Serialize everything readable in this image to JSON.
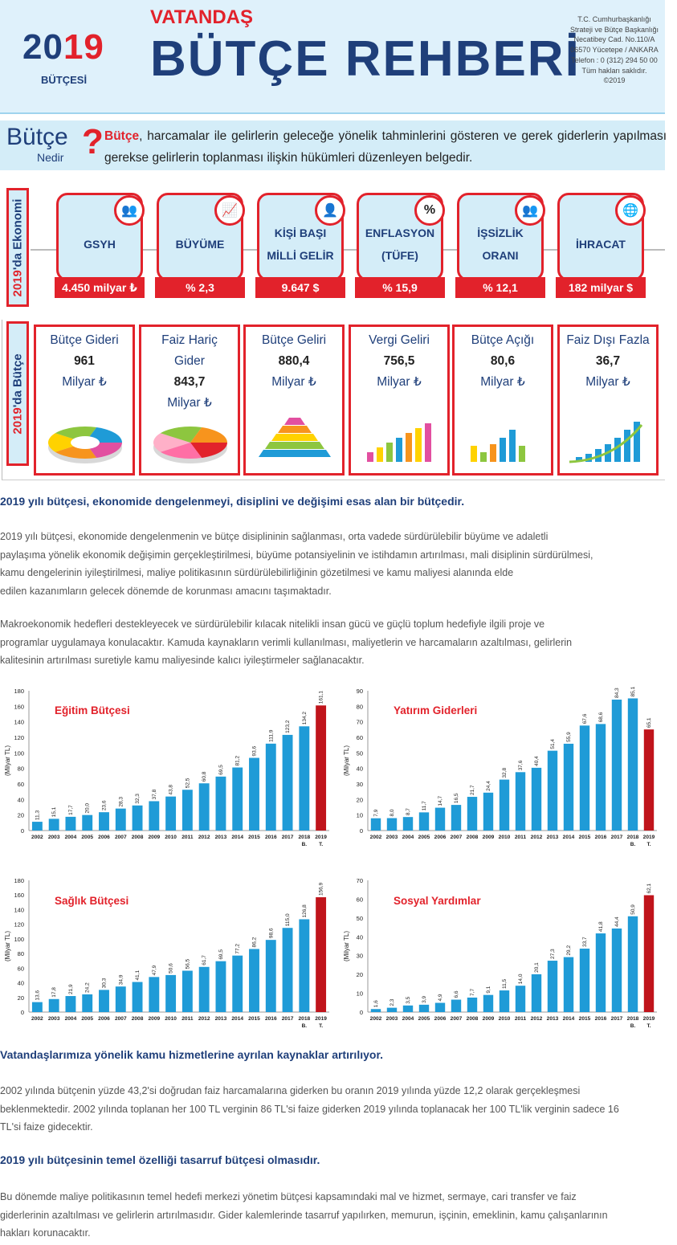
{
  "header": {
    "year_prefix": "20",
    "year_suffix": "19",
    "year_sub": "BÜTÇESİ",
    "small_title": "VATANDAŞ",
    "big_title": "BÜTÇE REHBERİ",
    "address": [
      "T.C. Cumhurbaşkanlığı",
      "Strateji ve Bütçe Başkanlığı",
      "Necatibey Cad. No.110/A",
      "06570 Yücetepe / ANKARA",
      "Telefon : 0 (312) 294 50 00",
      "Tüm hakları saklıdır.",
      "©2019"
    ]
  },
  "nedir": {
    "word": "Bütçe",
    "sub": "Nedir",
    "qmark": "?",
    "term": "Bütçe",
    "definition": ", harcamalar ile gelirlerin geleceğe yönelik tahminlerini gösteren ve gerek giderlerin yapılması gerekse gelirlerin toplanması ilişkin hükümleri düzenleyen belgedir."
  },
  "economy": {
    "label_year": "2019",
    "label_rest": "'da Ekonomi",
    "items": [
      {
        "label": "GSYH",
        "value": "4.450 milyar ₺",
        "icon": "people-icon",
        "glyph": "👥"
      },
      {
        "label": "BÜYÜME",
        "value": "% 2,3",
        "icon": "growth-chart-icon",
        "glyph": "📈"
      },
      {
        "label": "KİŞİ BAŞI MİLLİ GELİR",
        "value": "9.647 $",
        "icon": "person-icon",
        "glyph": "👤"
      },
      {
        "label": "ENFLASYON (TÜFE)",
        "value": "% 15,9",
        "icon": "percent-icon",
        "glyph": "%"
      },
      {
        "label": "İŞSİZLİK ORANI",
        "value": "% 12,1",
        "icon": "meeting-icon",
        "glyph": "👥"
      },
      {
        "label": "İHRACAT",
        "value": "182 milyar $",
        "icon": "globe-icon",
        "glyph": "🌐"
      }
    ]
  },
  "budget": {
    "label_year": "2019",
    "label_rest": "'da Bütçe",
    "items": [
      {
        "l1": "Bütçe Gideri",
        "v": "961",
        "u": "Milyar ₺",
        "img": "donut-chart-icon"
      },
      {
        "l1": "Faiz Hariç",
        "l2": "Gider",
        "v": "843,7",
        "u": "Milyar ₺",
        "img": "pie-chart-icon"
      },
      {
        "l1": "Bütçe Geliri",
        "v": "880,4",
        "u": "Milyar ₺",
        "img": "pyramid-icon"
      },
      {
        "l1": "Vergi Geliri",
        "v": "756,5",
        "u": "Milyar ₺",
        "img": "bar-chart-icon"
      },
      {
        "l1": "Bütçe Açığı",
        "v": "80,6",
        "u": "Milyar ₺",
        "img": "column-chart-icon"
      },
      {
        "l1": "Faiz Dışı Fazla",
        "v": "36,7",
        "u": "Milyar ₺",
        "img": "growth-arrow-icon"
      }
    ]
  },
  "sections": {
    "h1": "2019 yılı bütçesi, ekonomide dengelenmeyi, disiplini ve değişimi esas alan bir bütçedir.",
    "p1": [
      "2019 yılı bütçesi, ekonomide dengelenmenin ve bütçe disiplininin sağlanması, orta vadede sürdürülebilir büyüme ve adaletli",
      "paylaşıma yönelik ekonomik değişimin gerçekleştirilmesi, büyüme potansiyelinin ve istihdamın artırılması, mali disiplinin sürdürülmesi,",
      "kamu dengelerinin iyileştirilmesi, maliye politikasının sürdürülebilirliğinin gözetilmesi ve kamu maliyesi alanında elde",
      "edilen kazanımların gelecek dönemde de korunması amacını taşımaktadır."
    ],
    "p2": [
      "Makroekonomik hedefleri destekleyecek ve sürdürülebilir kılacak nitelikli insan gücü ve güçlü toplum hedefiyle ilgili proje ve",
      "programlar uygulamaya konulacaktır. Kamuda kaynakların verimli kullanılması, maliyetlerin ve harcamaların azaltılması, gelirlerin",
      "kalitesinin artırılması suretiyle kamu maliyesinde kalıcı iyileştirmeler sağlanacaktır."
    ],
    "h2": "Vatandaşlarımıza yönelik kamu hizmetlerine ayrılan kaynaklar artırılıyor.",
    "p3": [
      "2002 yılında bütçenin yüzde 43,2'si doğrudan faiz harcamalarına giderken bu oranın 2019 yılında yüzde 12,2 olarak gerçekleşmesi",
      "beklenmektedir. 2002 yılında toplanan her 100 TL verginin 86 TL'si faize giderken 2019 yılında toplanacak her 100 TL'lik verginin sadece 16",
      "TL'si faize gidecektir."
    ],
    "h3": "2019 yılı bütçesinin temel özelliği tasarruf bütçesi olmasıdır.",
    "p4": [
      "Bu dönemde maliye politikasının temel hedefi merkezi yönetim bütçesi kapsamındaki mal ve hizmet, sermaye, cari transfer ve faiz",
      "giderlerinin azaltılması ve gelirlerin artırılmasıdır. Gider kalemlerinde tasarruf yapılırken, memurun, işçinin, emeklinin, kamu çalışanlarının",
      "hakları korunacaktır."
    ]
  },
  "colors": {
    "blue": "#1f9bd7",
    "red": "#c0141b",
    "navy": "#1f3f7a",
    "accent": "#e2222b"
  },
  "chart_data": [
    {
      "type": "bar",
      "title": "Eğitim Bütçesi",
      "ylabel": "(Milyar TL)",
      "ylim": [
        0,
        180
      ],
      "yticks": [
        0,
        20,
        40,
        60,
        80,
        100,
        120,
        140,
        160,
        180
      ],
      "categories": [
        "2002",
        "2003",
        "2004",
        "2005",
        "2006",
        "2007",
        "2008",
        "2009",
        "2010",
        "2011",
        "2012",
        "2013",
        "2014",
        "2015",
        "2016",
        "2017",
        "2018",
        "2019"
      ],
      "sublabels": {
        "2018": "B.",
        "2019": "T."
      },
      "values": [
        11.3,
        15.1,
        17.7,
        20.0,
        23.6,
        28.3,
        32.3,
        37.8,
        43.8,
        52.5,
        60.8,
        69.5,
        81.2,
        93.6,
        111.9,
        123.2,
        134.2,
        161.1
      ],
      "labels": [
        "11,3",
        "15,1",
        "17,7",
        "20,0",
        "23,6",
        "28,3",
        "32,3",
        "37,8",
        "43,8",
        "52,5",
        "60,8",
        "69,5",
        "81,2",
        "93,6",
        "111,9",
        "123,2",
        "134,2",
        "161,1"
      ]
    },
    {
      "type": "bar",
      "title": "Yatırım Giderleri",
      "ylabel": "(Milyar TL)",
      "ylim": [
        0,
        90
      ],
      "yticks": [
        0,
        10,
        20,
        30,
        40,
        50,
        60,
        70,
        80,
        90
      ],
      "categories": [
        "2002",
        "2003",
        "2004",
        "2005",
        "2006",
        "2007",
        "2008",
        "2009",
        "2010",
        "2011",
        "2012",
        "2013",
        "2014",
        "2015",
        "2016",
        "2017",
        "2018",
        "2019"
      ],
      "sublabels": {
        "2018": "B.",
        "2019": "T."
      },
      "values": [
        7.9,
        8.0,
        8.7,
        11.7,
        14.7,
        16.5,
        21.7,
        24.4,
        32.8,
        37.6,
        40.4,
        51.4,
        55.9,
        67.6,
        68.6,
        84.3,
        85.1,
        65.1
      ],
      "labels": [
        "7,9",
        "8,0",
        "8,7",
        "11,7",
        "14,7",
        "16,5",
        "21,7",
        "24,4",
        "32,8",
        "37,6",
        "40,4",
        "51,4",
        "55,9",
        "67,6",
        "68,6",
        "84,3",
        "85,1",
        "65,1"
      ]
    },
    {
      "type": "bar",
      "title": "Sağlık Bütçesi",
      "ylabel": "(Milyar TL)",
      "ylim": [
        0,
        180
      ],
      "yticks": [
        0,
        20,
        40,
        60,
        80,
        100,
        120,
        140,
        160,
        180
      ],
      "categories": [
        "2002",
        "2003",
        "2004",
        "2005",
        "2006",
        "2007",
        "2008",
        "2009",
        "2010",
        "2011",
        "2012",
        "2013",
        "2014",
        "2015",
        "2016",
        "2017",
        "2018",
        "2019"
      ],
      "sublabels": {
        "2018": "B.",
        "2019": "T."
      },
      "values": [
        13.6,
        17.8,
        21.9,
        24.2,
        30.3,
        34.9,
        41.1,
        47.9,
        50.6,
        56.5,
        61.7,
        69.5,
        77.2,
        86.2,
        98.6,
        115.0,
        126.8,
        156.9
      ],
      "labels": [
        "13,6",
        "17,8",
        "21,9",
        "24,2",
        "30,3",
        "34,9",
        "41,1",
        "47,9",
        "50,6",
        "56,5",
        "61,7",
        "69,5",
        "77,2",
        "86,2",
        "98,6",
        "115,0",
        "126,8",
        "156,9"
      ]
    },
    {
      "type": "bar",
      "title": "Sosyal Yardımlar",
      "ylabel": "(Milyar TL)",
      "ylim": [
        0,
        70
      ],
      "yticks": [
        0,
        10,
        20,
        30,
        40,
        50,
        60,
        70
      ],
      "categories": [
        "2002",
        "2003",
        "2004",
        "2005",
        "2006",
        "2007",
        "2008",
        "2009",
        "2010",
        "2011",
        "2012",
        "2013",
        "2014",
        "2015",
        "2016",
        "2017",
        "2018",
        "2019"
      ],
      "sublabels": {
        "2018": "B.",
        "2019": "T."
      },
      "values": [
        1.6,
        2.3,
        3.5,
        3.9,
        4.9,
        6.6,
        7.7,
        9.1,
        11.5,
        14.0,
        20.1,
        27.3,
        29.2,
        33.7,
        41.8,
        44.4,
        50.9,
        62.1
      ],
      "labels": [
        "1,6",
        "2,3",
        "3,5",
        "3,9",
        "4,9",
        "6,6",
        "7,7",
        "9,1",
        "11,5",
        "14,0",
        "20,1",
        "27,3",
        "29,2",
        "33,7",
        "41,8",
        "44,4",
        "50,9",
        "62,1"
      ]
    }
  ]
}
